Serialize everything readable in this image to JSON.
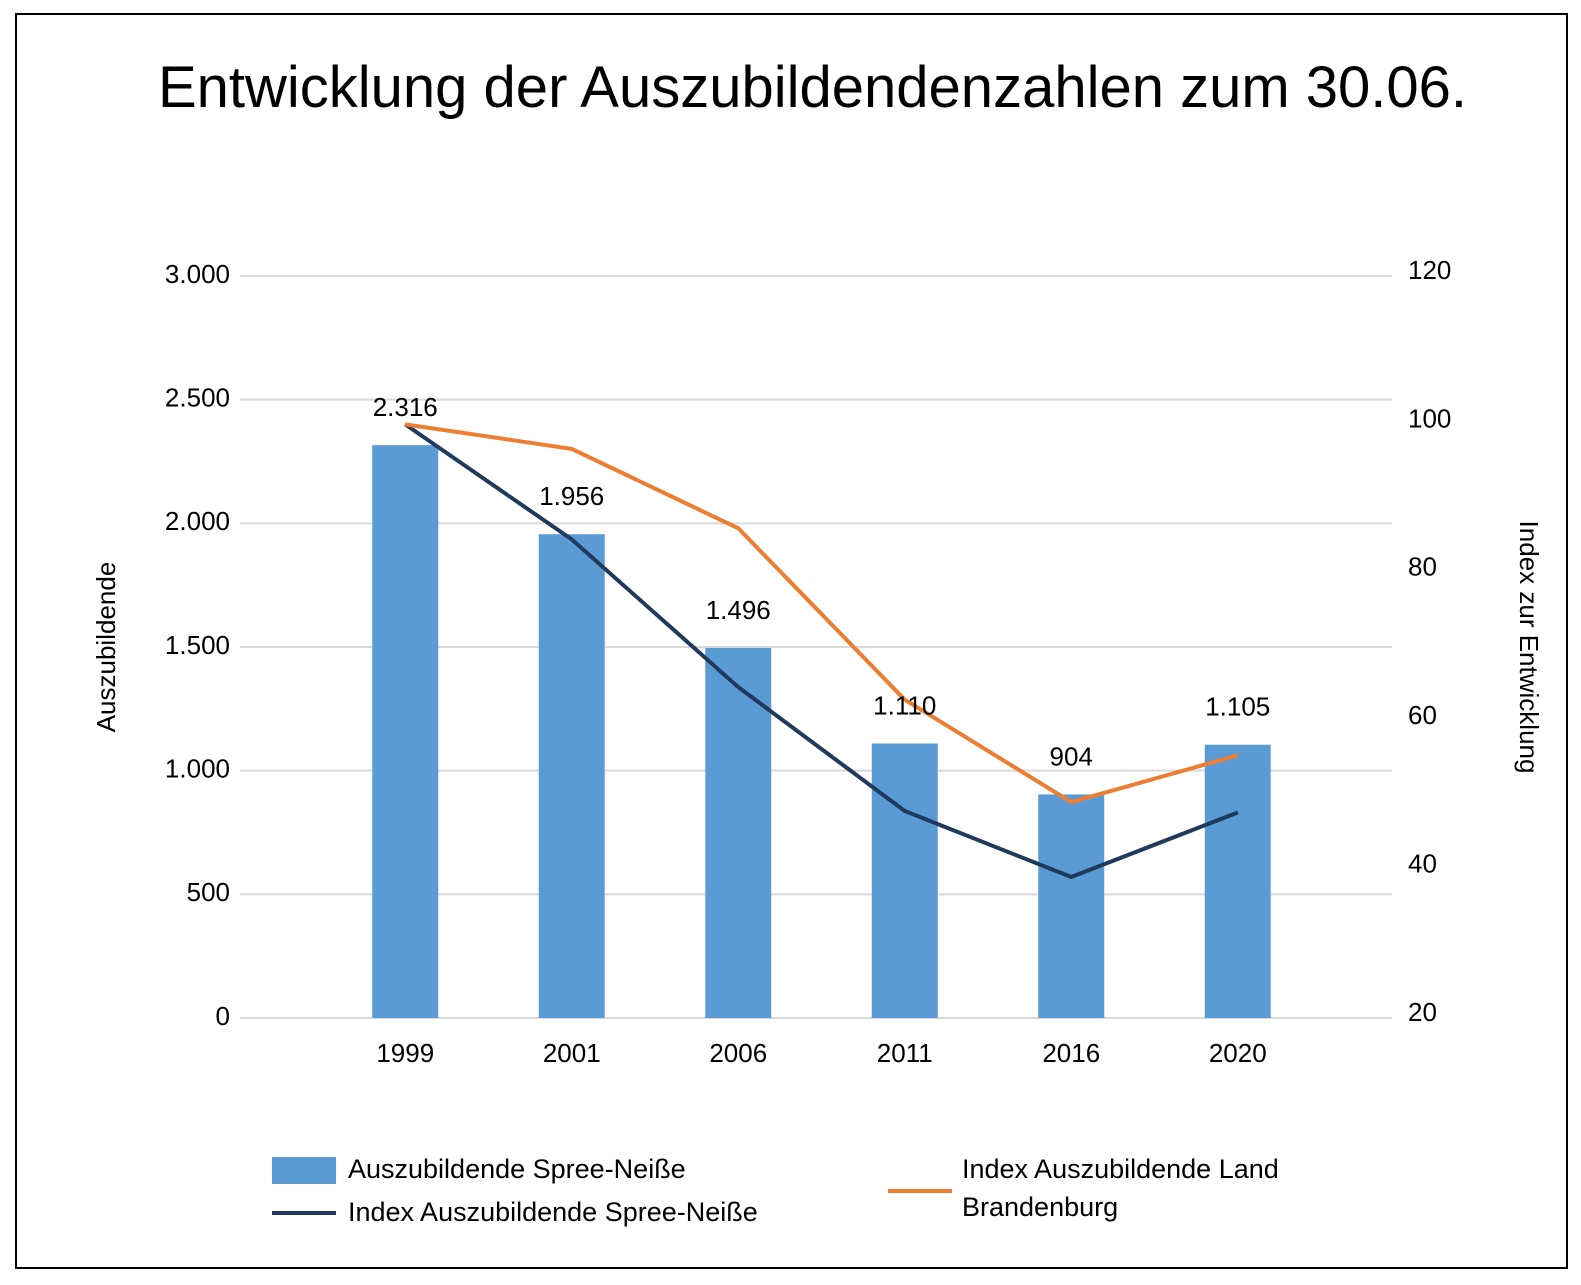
{
  "chart_data": {
    "type": "bar_line",
    "title": "Entwicklung der Auszubildendenzahlen zum 30.06.",
    "y_label": "Auszubildende",
    "y2_label": "Index zur Entwicklung",
    "categories": [
      "1999",
      "2001",
      "2006",
      "2011",
      "2016",
      "2020"
    ],
    "series": [
      {
        "name": "Auszubildende Spree-Neiße",
        "type": "bar",
        "color": "#5b9bd5",
        "values": [
          2316,
          1956,
          1496,
          1110,
          904,
          1105
        ],
        "value_labels": [
          "2.316",
          "1.956",
          "1.496",
          "1.110",
          "904",
          "1.105"
        ]
      },
      {
        "name": "Index Auszubildende Spree-Neiße",
        "type": "line",
        "axis": "y2",
        "color": "#203a5c",
        "values": [
          100,
          84.5,
          64.6,
          47.9,
          39,
          47.7
        ]
      },
      {
        "name": "Index Auszubildende Land Brandenburg",
        "type": "line",
        "axis": "y2",
        "color": "#ed7d31",
        "values": [
          100,
          96.7,
          86,
          62.9,
          49.1,
          55.4
        ]
      }
    ],
    "ylim": [
      0,
      3000
    ],
    "yticks": [
      0,
      500,
      {
        "value": 1000,
        "label": "1.000"
      },
      {
        "value": 1500,
        "label": "1.500"
      },
      {
        "value": 2000,
        "label": "2.000"
      },
      {
        "value": 2500,
        "label": "2.500"
      },
      {
        "value": 3000,
        "label": "3.000"
      }
    ],
    "y2lim": [
      20,
      120
    ],
    "y2ticks": [
      20,
      40,
      60,
      80,
      100,
      120
    ],
    "grid": true
  }
}
